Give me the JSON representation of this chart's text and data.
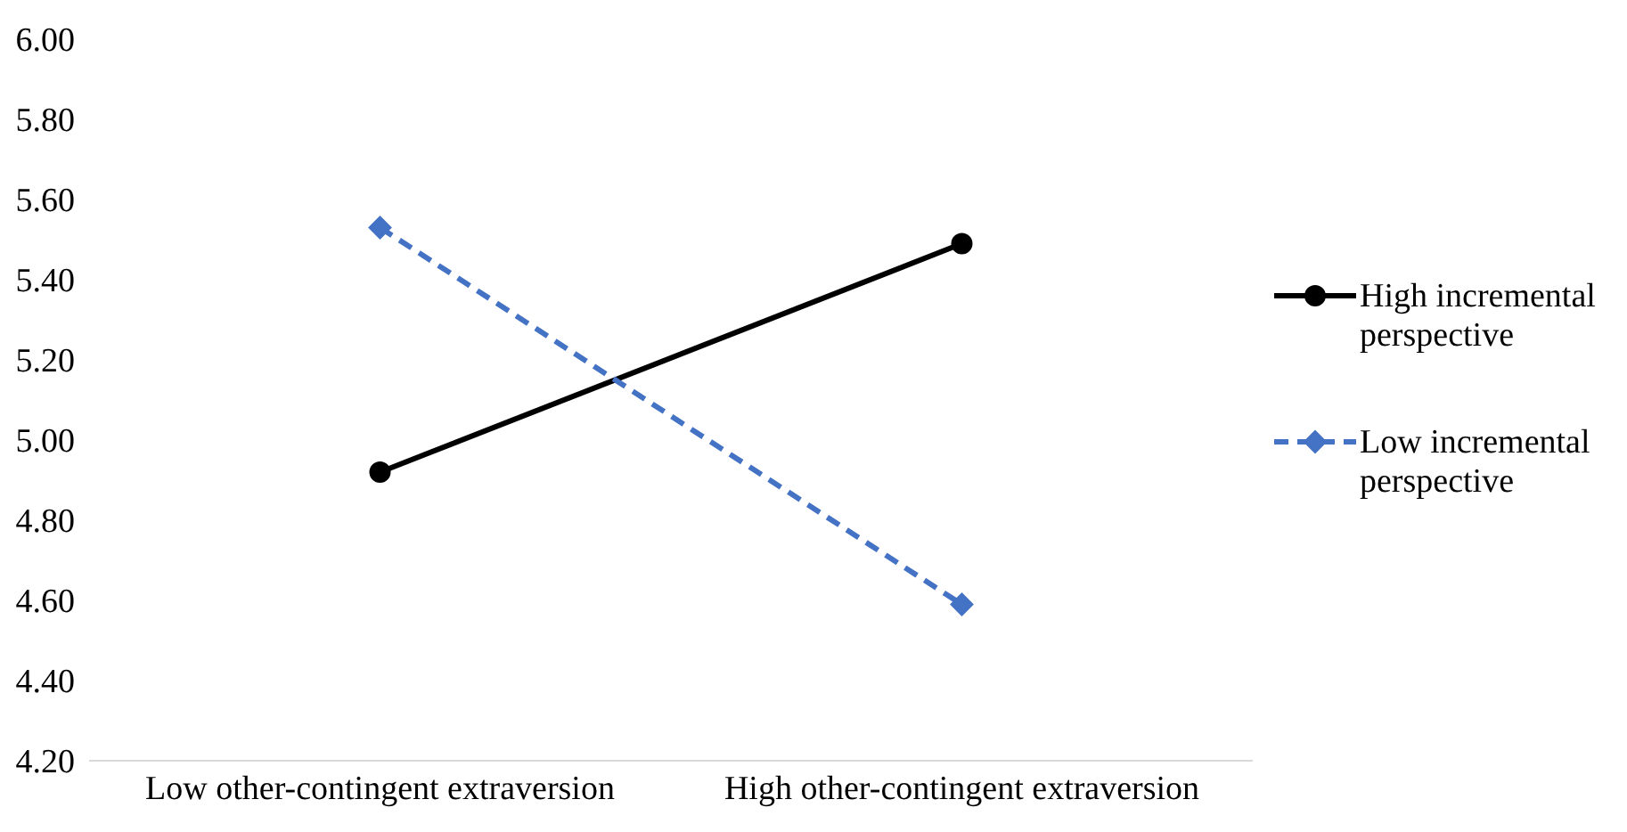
{
  "chart_data": {
    "type": "line",
    "categories": [
      "Low other-contingent extraversion",
      "High other-contingent extraversion"
    ],
    "series": [
      {
        "name": "High incremental perspective",
        "color": "#000000",
        "values": [
          4.92,
          5.49
        ],
        "marker": "circle",
        "line_style": "solid"
      },
      {
        "name": "Low incremental perspective",
        "color": "#4472c4",
        "values": [
          5.53,
          4.59
        ],
        "marker": "diamond",
        "line_style": "dashed"
      }
    ],
    "ylim": [
      4.2,
      6.0
    ],
    "yticks": [
      {
        "value": 4.2,
        "label": "4.20"
      },
      {
        "value": 4.4,
        "label": "4.40"
      },
      {
        "value": 4.6,
        "label": "4.60"
      },
      {
        "value": 4.8,
        "label": "4.80"
      },
      {
        "value": 5.0,
        "label": "5.00"
      },
      {
        "value": 5.2,
        "label": "5.20"
      },
      {
        "value": 5.4,
        "label": "5.40"
      },
      {
        "value": 5.6,
        "label": "5.60"
      },
      {
        "value": 5.8,
        "label": "5.80"
      },
      {
        "value": 6.0,
        "label": "6.00"
      }
    ],
    "grid": false,
    "legend": "right"
  }
}
